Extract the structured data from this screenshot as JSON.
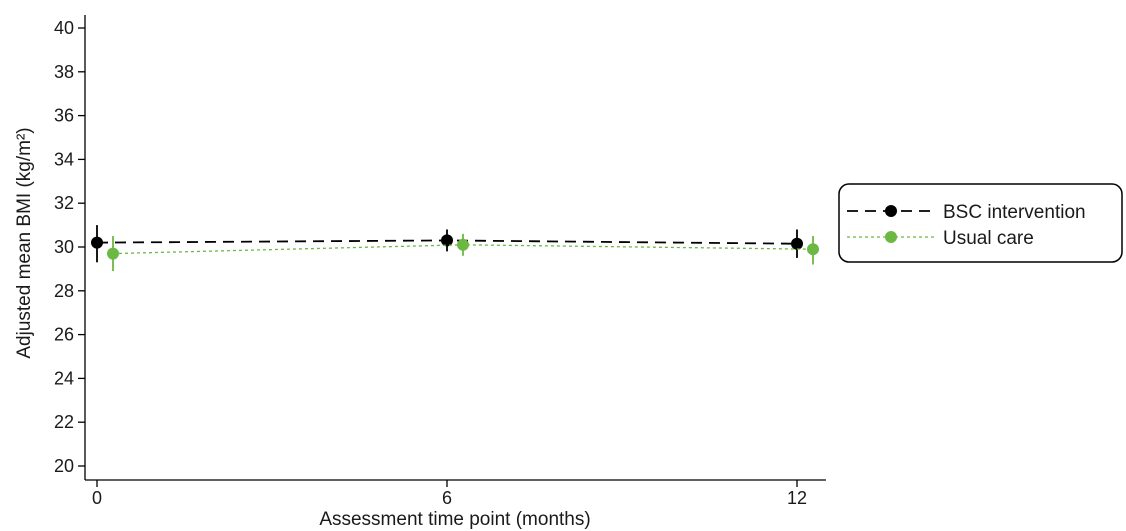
{
  "chart_data": {
    "type": "line",
    "xlabel": "Assessment time point (months)",
    "ylabel": "Adjusted mean BMI (kg/m²)",
    "ylim": [
      20,
      40
    ],
    "yticks": [
      20,
      22,
      24,
      26,
      28,
      30,
      32,
      34,
      36,
      38,
      40
    ],
    "xlim": [
      0,
      12
    ],
    "xticks": [
      0,
      6,
      12
    ],
    "legend_position": "right",
    "grid": false,
    "error_bars": true,
    "series": [
      {
        "name": "BSC intervention",
        "color": "#000000",
        "line_style": "long-dashed",
        "marker": "filled-circle",
        "x": [
          0,
          6,
          12
        ],
        "y": [
          30.2,
          30.3,
          30.15
        ],
        "ci_low": [
          29.3,
          29.8,
          29.5
        ],
        "ci_high": [
          31.0,
          30.8,
          30.8
        ]
      },
      {
        "name": "Usual care",
        "color": "#6bb843",
        "line_style": "short-dashed",
        "marker": "filled-circle",
        "x": [
          0,
          6,
          12
        ],
        "y": [
          29.7,
          30.1,
          29.9
        ],
        "ci_low": [
          28.9,
          29.6,
          29.2
        ],
        "ci_high": [
          30.5,
          30.6,
          30.5
        ]
      }
    ]
  }
}
